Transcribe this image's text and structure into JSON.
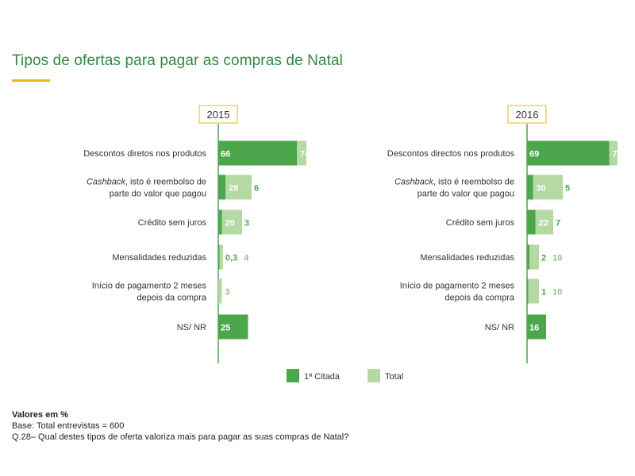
{
  "title": "Tipos de ofertas para pagar as compras de Natal",
  "colors": {
    "accent": "#2e8b3f",
    "first": "#4ca64c",
    "total": "#b5d9a3",
    "total_text": "#8cc47c",
    "year_border": "#e5b81c"
  },
  "legend": {
    "first": "1ª Citada",
    "total": "Total"
  },
  "notes": {
    "heading": "Valores em %",
    "base": "Base: Total entrevistas  = 600",
    "question": "Q.28– Qual destes tipos de oferta valoriza mais para pagar as suas compras de Natal?"
  },
  "chart_data": [
    {
      "type": "bar",
      "orientation": "horizontal",
      "year": "2015",
      "categories": [
        [
          "Descontos diretos nos produtos"
        ],
        [
          "*Cashback*, isto é reembolso de",
          "parte do valor que pagou"
        ],
        [
          "Crédito sem juros"
        ],
        [
          "Mensalidades reduzidas"
        ],
        [
          "Início de pagamento 2 meses",
          "depois da compra"
        ],
        [
          "NS/ NR"
        ]
      ],
      "series": [
        {
          "name": "1ª Citada",
          "values": [
            66,
            6,
            3,
            0.3,
            null,
            25
          ],
          "labels": [
            "66",
            "6",
            "3",
            "0,3",
            "",
            "25"
          ]
        },
        {
          "name": "Total",
          "values": [
            74,
            28,
            20,
            4,
            3,
            null
          ],
          "labels": [
            "74",
            "28",
            "20",
            "4",
            "3",
            ""
          ]
        }
      ]
    },
    {
      "type": "bar",
      "orientation": "horizontal",
      "year": "2016",
      "categories": [
        [
          "Descontos directos nos produtos"
        ],
        [
          "*Cashback*, isto é reembolso de",
          "parte do valor que pagou"
        ],
        [
          "Crédito sem juros"
        ],
        [
          "Mensalidades reduzidas"
        ],
        [
          "Início de pagamento 2 meses",
          "depois da compra"
        ],
        [
          "NS/ NR"
        ]
      ],
      "series": [
        {
          "name": "1ª Citada",
          "values": [
            69,
            5,
            7,
            2,
            1,
            16
          ],
          "labels": [
            "69",
            "5",
            "7",
            "2",
            "1",
            "16"
          ]
        },
        {
          "name": "Total",
          "values": [
            76,
            30,
            22,
            10,
            10,
            null
          ],
          "labels": [
            "76",
            "30",
            "22",
            "10",
            "10",
            ""
          ]
        }
      ]
    }
  ]
}
